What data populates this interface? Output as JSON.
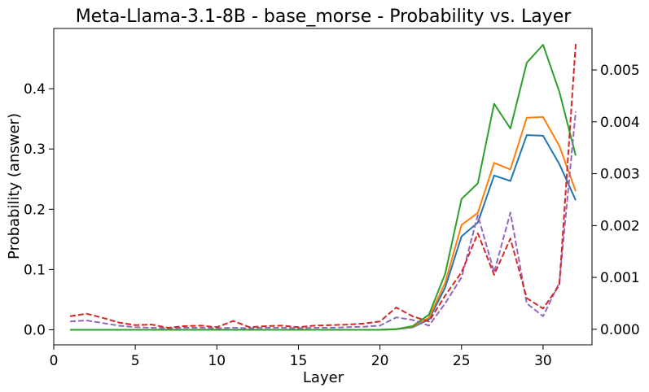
{
  "chart_data": {
    "type": "line",
    "title": "Meta-Llama-3.1-8B - base_morse - Probability vs. Layer",
    "xlabel": "Layer",
    "ylabel": "Probability (answer)",
    "xlim": [
      0,
      33
    ],
    "ylim_left": [
      -0.025,
      0.5
    ],
    "ylim_right": [
      -0.0003,
      0.0058
    ],
    "x_ticks": [
      0,
      5,
      10,
      15,
      20,
      25,
      30
    ],
    "y_ticks_left": [
      0.0,
      0.1,
      0.2,
      0.3,
      0.4
    ],
    "y_ticks_left_labels": [
      "0.0",
      "0.1",
      "0.2",
      "0.3",
      "0.4"
    ],
    "y_ticks_right": [
      0.0,
      0.001,
      0.002,
      0.003,
      0.004,
      0.005
    ],
    "y_ticks_right_labels": [
      "0.000",
      "0.001",
      "0.002",
      "0.003",
      "0.004",
      "0.005"
    ],
    "grid": false,
    "legend": "none",
    "x": [
      1,
      2,
      3,
      4,
      5,
      6,
      7,
      8,
      9,
      10,
      11,
      12,
      13,
      14,
      15,
      16,
      17,
      18,
      19,
      20,
      21,
      22,
      23,
      24,
      25,
      26,
      27,
      28,
      29,
      30,
      31,
      32
    ],
    "series": [
      {
        "axis": "left",
        "color": "#1f77b4",
        "dashed": false,
        "values": [
          0.0,
          0.0,
          0.0,
          0.0,
          0.0,
          0.0,
          0.0,
          0.0,
          0.0,
          0.0,
          0.0,
          0.0,
          0.0,
          0.0,
          0.0,
          0.0,
          0.0,
          0.0,
          0.0,
          0.0,
          0.001,
          0.004,
          0.017,
          0.07,
          0.155,
          0.178,
          0.256,
          0.247,
          0.323,
          0.322,
          0.275,
          0.215
        ]
      },
      {
        "axis": "left",
        "color": "#ff7f0e",
        "dashed": false,
        "values": [
          0.0,
          0.0,
          0.0,
          0.0,
          0.0,
          0.0,
          0.0,
          0.0,
          0.0,
          0.0,
          0.0,
          0.0,
          0.0,
          0.0,
          0.0,
          0.0,
          0.0,
          0.0,
          0.0,
          0.0,
          0.001,
          0.005,
          0.02,
          0.078,
          0.174,
          0.194,
          0.277,
          0.266,
          0.352,
          0.353,
          0.305,
          0.23
        ]
      },
      {
        "axis": "left",
        "color": "#2ca02c",
        "dashed": false,
        "values": [
          0.0,
          0.0,
          0.0,
          0.0,
          0.0,
          0.0,
          0.0,
          0.0,
          0.0,
          0.0,
          0.0,
          0.0,
          0.0,
          0.0,
          0.0,
          0.0,
          0.0,
          0.0,
          0.0,
          0.0,
          0.001,
          0.006,
          0.025,
          0.093,
          0.217,
          0.243,
          0.375,
          0.334,
          0.443,
          0.473,
          0.395,
          0.289
        ]
      },
      {
        "axis": "right",
        "color": "#9467bd",
        "dashed": true,
        "values": [
          0.00015,
          0.00017,
          0.00012,
          7e-05,
          4e-05,
          3e-05,
          2e-05,
          3e-05,
          3e-05,
          2e-05,
          3e-05,
          2e-05,
          3e-05,
          3e-05,
          2e-05,
          3e-05,
          3e-05,
          4e-05,
          5e-05,
          7e-05,
          0.00023,
          0.00018,
          7e-05,
          0.0005,
          0.001,
          0.0022,
          0.0011,
          0.00225,
          0.0005,
          0.00025,
          0.0009,
          0.0042
        ]
      },
      {
        "axis": "right",
        "color": "#d62728",
        "dashed": true,
        "values": [
          0.00025,
          0.0003,
          0.00022,
          0.00013,
          8e-05,
          9e-05,
          3e-05,
          6e-05,
          7e-05,
          4e-05,
          0.00016,
          4e-05,
          6e-05,
          7e-05,
          4e-05,
          7e-05,
          8e-05,
          9e-05,
          0.00011,
          0.00015,
          0.00042,
          0.00025,
          0.00015,
          0.00065,
          0.0011,
          0.00185,
          0.00105,
          0.00175,
          0.0006,
          0.0004,
          0.00085,
          0.0055
        ]
      }
    ]
  }
}
